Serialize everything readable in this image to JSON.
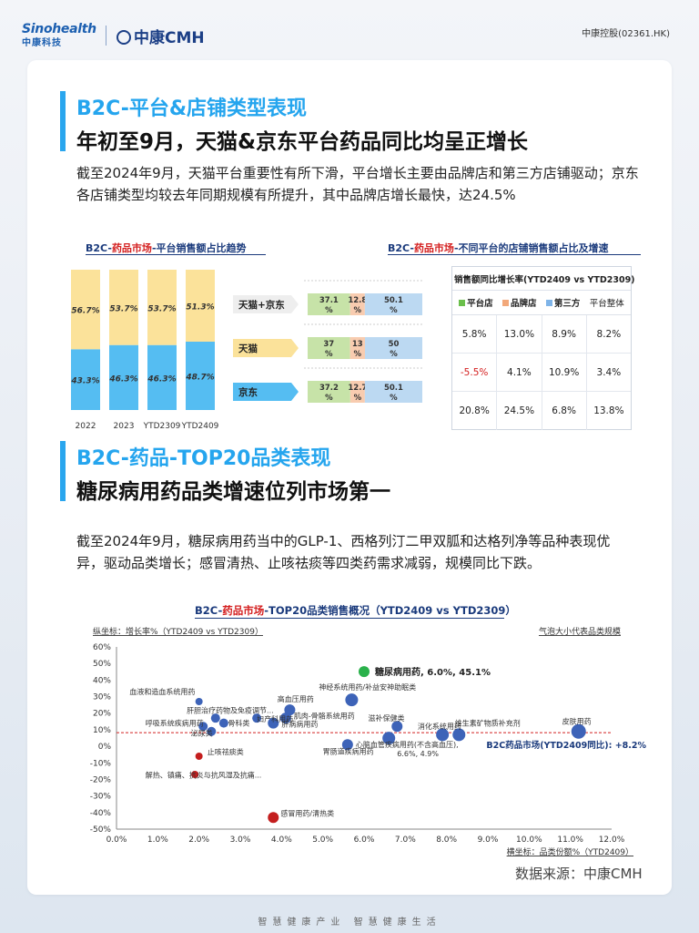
{
  "header": {
    "logo_en": "Sinohealth",
    "logo_cn": "中康科技",
    "logo_cmh": "中康CMH",
    "stock": "中康控股(02361.HK)"
  },
  "section1": {
    "title": "B2C-平台&店铺类型表现",
    "subtitle": "年初至9月，天猫&京东平台药品同比均呈正增长",
    "paragraph": "截至2024年9月，天猫平台重要性有所下滑，平台增长主要由品牌店和第三方店铺驱动；京东各店铺类型均较去年同期规模有所提升，其中品牌店增长最快，达24.5%"
  },
  "section2": {
    "title": "B2C-药品-TOP20品类表现",
    "subtitle": "糖尿病用药品类增速位列市场第一",
    "paragraph": "截至2024年9月，糖尿病用药当中的GLP-1、西格列汀二甲双胍和达格列净等品种表现优异，驱动品类增长；感冒清热、止咳祛痰等四类药需求减弱，规模同比下跌。"
  },
  "chart1": {
    "title_pre": "B2C-",
    "title_red": "药品市场",
    "title_post": "-平台销售额占比趋势"
  },
  "chart2": {
    "title_pre": "B2C-",
    "title_red": "药品市场",
    "title_post": "-不同平台的店铺销售额占比及增速"
  },
  "chart3": {
    "title_pre": "B2C-",
    "title_red": "药品市场",
    "title_post": "-TOP20品类销售概况（YTD2409 vs YTD2309）",
    "y_axis_note": "纵坐标：增长率%（YTD2409 vs YTD2309）",
    "size_note": "气泡大小代表品类规模",
    "x_axis_note": "横坐标：品类份额%（YTD2409）",
    "ref_label": "B2C药品市场(YTD2409同比): +8.2%",
    "highlight_label": "糖尿病用药, 6.0%, 45.1%"
  },
  "table": {
    "header": "销售额同比增长率(YTD2409 vs YTD2309)",
    "legend": [
      {
        "label": "平台店",
        "color": "#6abf4b"
      },
      {
        "label": "品牌店",
        "color": "#f2a87a"
      },
      {
        "label": "第三方",
        "color": "#7fb4e8"
      },
      {
        "label": "平台整体",
        "color": ""
      }
    ],
    "rows": [
      [
        "5.8%",
        "13.0%",
        "8.9%",
        "8.2%"
      ],
      [
        "-5.5%",
        "4.1%",
        "10.9%",
        "3.4%"
      ],
      [
        "20.8%",
        "24.5%",
        "6.8%",
        "13.8%"
      ]
    ]
  },
  "source": "数据来源：中康CMH",
  "footer": "智慧健康产业  智慧健康生活",
  "chart_data": [
    {
      "type": "bar",
      "stacked": true,
      "categories": [
        "2022",
        "2023",
        "YTD2309",
        "YTD2409"
      ],
      "series": [
        {
          "name": "京东",
          "values": [
            43.3,
            46.3,
            46.3,
            48.7
          ],
          "color": "#55bdf2"
        },
        {
          "name": "天猫",
          "values": [
            56.7,
            53.7,
            53.7,
            51.3
          ],
          "color": "#fbe29a"
        }
      ],
      "data_labels": {
        "京东": [
          "43.3%",
          "46.3%",
          "46.3%",
          "48.7%"
        ],
        "天猫": [
          "56.7%",
          "53.7%",
          "53.7%",
          "51.3%"
        ]
      },
      "ylim": [
        0,
        100
      ]
    },
    {
      "type": "bar",
      "stacked": true,
      "orientation": "horizontal",
      "categories": [
        "天猫+京东",
        "天猫",
        "京东"
      ],
      "series": [
        {
          "name": "平台店",
          "values": [
            37.1,
            37.0,
            37.2
          ],
          "color": "#c7e3a8"
        },
        {
          "name": "品牌店",
          "values": [
            12.8,
            13.0,
            12.7
          ],
          "color": "#f8ccb0"
        },
        {
          "name": "第三方",
          "values": [
            50.1,
            50.0,
            50.1
          ],
          "color": "#bcd9f2"
        }
      ],
      "xlim": [
        0,
        100
      ]
    },
    {
      "type": "scatter",
      "xlabel": "横坐标：品类份额%（YTD2409）",
      "ylabel": "纵坐标：增长率%（YTD2409 vs YTD2309）",
      "xlim": [
        0,
        12
      ],
      "ylim": [
        -50,
        60
      ],
      "xticks": [
        "0.0%",
        "1.0%",
        "2.0%",
        "3.0%",
        "4.0%",
        "5.0%",
        "6.0%",
        "7.0%",
        "8.0%",
        "9.0%",
        "10.0%",
        "11.0%",
        "12.0%"
      ],
      "yticks": [
        "60%",
        "50%",
        "40%",
        "30%",
        "20%",
        "10%",
        "0%",
        "-10%",
        "-20%",
        "-30%",
        "-40%",
        "-50%"
      ],
      "reference_y": 8.2,
      "points": [
        {
          "name": "糖尿病用药",
          "x": 6.0,
          "y": 45.1,
          "color": "#2ab14b",
          "size": 6
        },
        {
          "name": "神经系统用药/补益安神助眠类",
          "x": 5.7,
          "y": 28,
          "color": "#3d63b8",
          "size": 7
        },
        {
          "name": "血液和造血系统用药",
          "x": 2.0,
          "y": 27,
          "color": "#3d63b8",
          "size": 4
        },
        {
          "name": "肝胆/治疗的药物及免疫调节...",
          "x": 2.4,
          "y": 17,
          "color": "#3d63b8",
          "size": 5
        },
        {
          "name": "高血压用药",
          "x": 4.2,
          "y": 22,
          "color": "#3d63b8",
          "size": 6
        },
        {
          "name": "骨科类",
          "x": 2.6,
          "y": 14,
          "color": "#3d63b8",
          "size": 5
        },
        {
          "name": "肌肉-骨骼系统用药",
          "x": 4.1,
          "y": 17,
          "color": "#3d63b8",
          "size": 6
        },
        {
          "name": "妇产科用药",
          "x": 3.4,
          "y": 17,
          "color": "#3d63b8",
          "size": 5
        },
        {
          "name": "呼吸系统疾病用药",
          "x": 2.1,
          "y": 12,
          "color": "#3d63b8",
          "size": 5
        },
        {
          "name": "泌尿类",
          "x": 2.3,
          "y": 9,
          "color": "#3d63b8",
          "size": 5
        },
        {
          "name": "肝病病用药",
          "x": 3.8,
          "y": 14,
          "color": "#3d63b8",
          "size": 6
        },
        {
          "name": "滋补保健类",
          "x": 6.8,
          "y": 12,
          "color": "#3d63b8",
          "size": 6
        },
        {
          "name": "消化系统用药",
          "x": 7.9,
          "y": 7,
          "color": "#3d63b8",
          "size": 7
        },
        {
          "name": "维生素矿物质补充剂",
          "x": 8.3,
          "y": 7,
          "color": "#3d63b8",
          "size": 7
        },
        {
          "name": "皮肤用药",
          "x": 11.2,
          "y": 9,
          "color": "#3d63b8",
          "size": 8
        },
        {
          "name": "心脑血管疾病用药(不含高血压)",
          "x": 6.6,
          "y": 4.9,
          "color": "#3d63b8",
          "size": 7
        },
        {
          "name": "胃肠道疾病用药",
          "x": 5.6,
          "y": 1,
          "color": "#3d63b8",
          "size": 6
        },
        {
          "name": "止咳祛痰类",
          "x": 2.0,
          "y": -6,
          "color": "#c41e1e",
          "size": 4
        },
        {
          "name": "解热、镇痛、抗炎与抗风湿及抗痛...",
          "x": 1.9,
          "y": -17,
          "color": "#c41e1e",
          "size": 4
        },
        {
          "name": "感冒用药/清热类",
          "x": 3.8,
          "y": -43,
          "color": "#c41e1e",
          "size": 6
        }
      ],
      "point_labels": [
        {
          "text": "神经系统用药/补益安神助眠类"
        },
        {
          "text": "血液和造血系统用药"
        },
        {
          "text": "肝胆治疗药物及免疫调节..."
        },
        {
          "text": "高血压用药"
        },
        {
          "text": "骨科类"
        },
        {
          "text": "肌肉-骨骼系统用药"
        },
        {
          "text": "妇产科用药"
        },
        {
          "text": "呼吸系统疾病用药"
        },
        {
          "text": "泌尿类"
        },
        {
          "text": "肝病病用药"
        },
        {
          "text": "滋补保健类"
        },
        {
          "text": "消化系统用药"
        },
        {
          "text": "维生素矿物质补充剂"
        },
        {
          "text": "皮肤用药"
        },
        {
          "text": "心脑血管疾病用药(不含高血压),"
        },
        {
          "text": "6.6%, 4.9%"
        },
        {
          "text": "胃肠道疾病用药"
        },
        {
          "text": "止咳祛痰类"
        },
        {
          "text": "解热、镇痛、抗炎与抗风湿及抗痛..."
        },
        {
          "text": "感冒用药/清热类"
        }
      ]
    }
  ]
}
